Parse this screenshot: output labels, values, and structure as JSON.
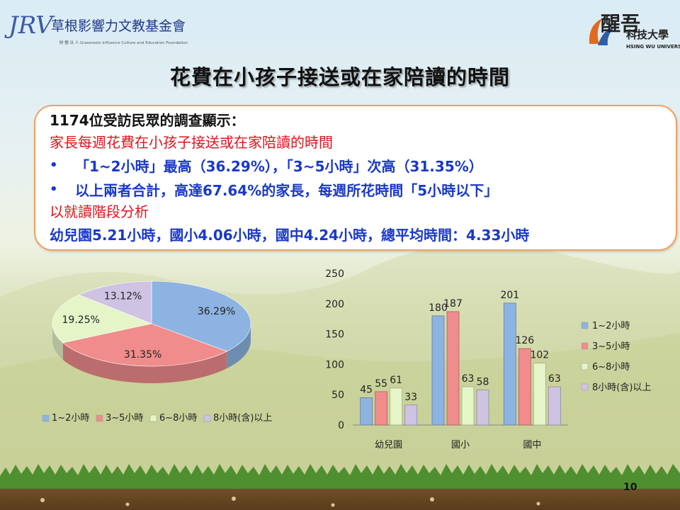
{
  "header": {
    "logo_left": {
      "monogram": "JRV",
      "name": "草根影響力文教基金會",
      "subtitle": "財 團 法 人 Grassroots Influence Culture and Education Foundation"
    },
    "logo_right": {
      "big": "醒吾",
      "name": "科技大學",
      "subtitle": "HSING WU UNIVERSITY"
    },
    "title": "花費在小孩子接送或在家陪讀的時間"
  },
  "summary": {
    "line1": "1174位受訪民眾的調查顯示：",
    "line2": "家長每週花費在小孩子接送或在家陪讀的時間",
    "bullet_symbol": "•",
    "line3": "「1~2小時」最高（36.29%），「3~5小時」次高（31.35%）",
    "line4": "以上兩者合計，高達67.64%的家長，每週所花時間「5小時以下」",
    "line5": "以就讀階段分析",
    "line6": "幼兒園5.21小時，國小4.06小時，國中4.24小時，總平均時間：4.33小時"
  },
  "colors": {
    "c1": "#8db3e2",
    "c2": "#f08c8c",
    "c3": "#e6f5c8",
    "c4": "#cfc3e3"
  },
  "chart_data": [
    {
      "type": "pie",
      "categories": [
        "1~2小時",
        "3~5小時",
        "6~8小時",
        "8小時(含)以上"
      ],
      "values": [
        36.29,
        31.35,
        19.25,
        13.12
      ],
      "labels": [
        "36.29%",
        "31.35%",
        "19.25%",
        "13.12%"
      ],
      "legend_position": "bottom",
      "style": "3d"
    },
    {
      "type": "bar",
      "categories": [
        "幼兒園",
        "國小",
        "國中"
      ],
      "series": [
        {
          "name": "1~2小時",
          "values": [
            45,
            180,
            201
          ]
        },
        {
          "name": "3~5小時",
          "values": [
            55,
            187,
            126
          ]
        },
        {
          "name": "6~8小時",
          "values": [
            61,
            63,
            102
          ]
        },
        {
          "name": "8小時(含)以上",
          "values": [
            33,
            58,
            63
          ]
        }
      ],
      "ylim": [
        0,
        250
      ],
      "yticks": [
        0,
        50,
        100,
        150,
        200,
        250
      ],
      "grid": false,
      "legend_position": "right",
      "data_labels": true
    }
  ],
  "page_number": "10"
}
